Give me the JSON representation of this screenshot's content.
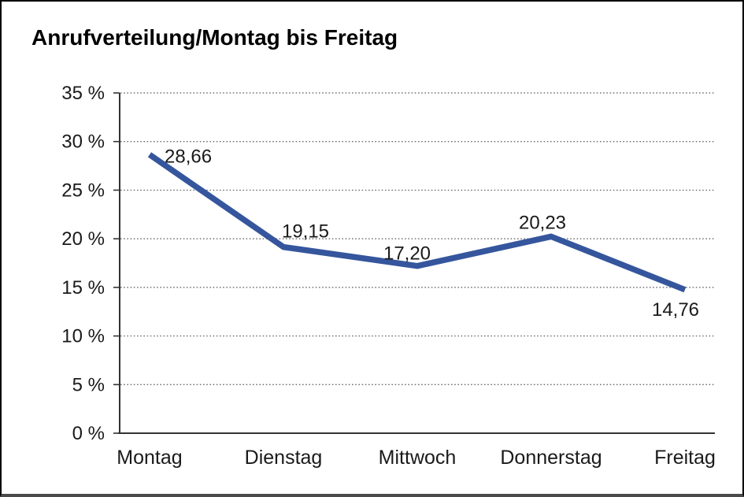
{
  "chart_data": {
    "type": "line",
    "title": "Anrufverteilung/Montag bis Freitag",
    "categories": [
      "Montag",
      "Dienstag",
      "Mittwoch",
      "Donnerstag",
      "Freitag"
    ],
    "series": [
      {
        "name": "Anrufverteilung",
        "values": [
          28.66,
          19.15,
          17.2,
          20.23,
          14.76
        ]
      }
    ],
    "point_labels": [
      "28,66",
      "19,15",
      "17,20",
      "20,23",
      "14,76"
    ],
    "xlabel": "",
    "ylabel": "",
    "ylim": [
      0,
      35
    ],
    "y_tick_step": 5,
    "y_ticks": [
      {
        "value": 35,
        "label": "35 %"
      },
      {
        "value": 30,
        "label": "30 %"
      },
      {
        "value": 25,
        "label": "25 %"
      },
      {
        "value": 20,
        "label": "20 %"
      },
      {
        "value": 15,
        "label": "15 %"
      },
      {
        "value": 10,
        "label": "10 %"
      },
      {
        "value": 5,
        "label": "5 %"
      },
      {
        "value": 0,
        "label": "0 %"
      }
    ],
    "grid": "horizontal-dotted",
    "legend": "none",
    "colors": {
      "line": "#35569d",
      "axis": "#333333",
      "gridline": "#5a5a5a",
      "text": "#1a1a1a",
      "frame_border": "#000000",
      "frame_border_bottom": "#4a4a4a",
      "background": "#ffffff"
    }
  }
}
